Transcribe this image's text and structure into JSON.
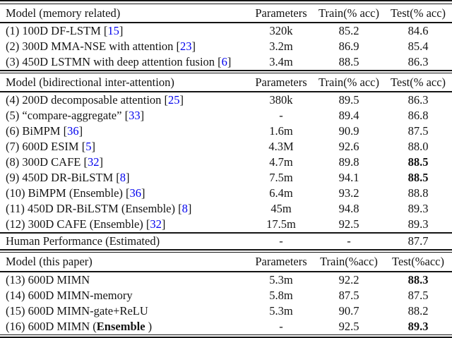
{
  "colors": {
    "background": "#FFFFFF",
    "text": "#141414",
    "rule": "#141414",
    "citation": "#0000EE"
  },
  "citation": {
    "open": " [",
    "close": "]"
  },
  "table": {
    "sections": [
      {
        "title": "Model (memory related)",
        "headers": {
          "parameters": "Parameters",
          "train": "Train(% acc)",
          "test": "Test(% acc)"
        },
        "rule_before": "double",
        "rows": [
          {
            "model_pre": "(1) 100D DF-LSTM",
            "model_bold": "",
            "model_post": "",
            "cite": "15",
            "params": "320k",
            "train": "85.2",
            "test": "84.6",
            "bold_test": false
          },
          {
            "model_pre": "(2) 300D MMA-NSE with attention",
            "model_bold": "",
            "model_post": "",
            "cite": "23",
            "params": "3.2m",
            "train": "86.9",
            "test": "85.4",
            "bold_test": false
          },
          {
            "model_pre": "(3) 450D LSTMN with deep attention fusion",
            "model_bold": "",
            "model_post": "",
            "cite": "6",
            "params": "3.4m",
            "train": "88.5",
            "test": "86.3",
            "bold_test": false
          }
        ]
      },
      {
        "title": "Model (bidirectional inter-attention)",
        "headers": {
          "parameters": "Parameters",
          "train": "Train(% acc)",
          "test": "Test(% acc)"
        },
        "rule_before": "double",
        "rows": [
          {
            "model_pre": "(4) 200D decomposable attention",
            "model_bold": "",
            "model_post": "",
            "cite": "25",
            "params": "380k",
            "train": "89.5",
            "test": "86.3",
            "bold_test": false
          },
          {
            "model_pre": "(5) “compare-aggregate”",
            "model_bold": "",
            "model_post": "",
            "cite": "33",
            "params": "-",
            "train": "89.4",
            "test": "86.8",
            "bold_test": false
          },
          {
            "model_pre": "(6) BiMPM",
            "model_bold": "",
            "model_post": "",
            "cite": "36",
            "params": "1.6m",
            "train": "90.9",
            "test": "87.5",
            "bold_test": false
          },
          {
            "model_pre": "(7) 600D ESIM",
            "model_bold": "",
            "model_post": "",
            "cite": "5",
            "params": "4.3M",
            "train": "92.6",
            "test": "88.0",
            "bold_test": false
          },
          {
            "model_pre": "(8) 300D CAFE",
            "model_bold": "",
            "model_post": "",
            "cite": "32",
            "params": "4.7m",
            "train": "89.8",
            "test": "88.5",
            "bold_test": true
          },
          {
            "model_pre": "(9) 450D DR-BiLSTM",
            "model_bold": "",
            "model_post": "",
            "cite": "8",
            "params": "7.5m",
            "train": "94.1",
            "test": "88.5",
            "bold_test": true
          },
          {
            "model_pre": "(10) BiMPM (Ensemble)",
            "model_bold": "",
            "model_post": "",
            "cite": "36",
            "params": "6.4m",
            "train": "93.2",
            "test": "88.8",
            "bold_test": false
          },
          {
            "model_pre": "(11) 450D DR-BiLSTM (Ensemble)",
            "model_bold": "",
            "model_post": "",
            "cite": "8",
            "params": "45m",
            "train": "94.8",
            "test": "89.3",
            "bold_test": false
          },
          {
            "model_pre": "(12) 300D CAFE (Ensemble)",
            "model_bold": "",
            "model_post": "",
            "cite": "32",
            "params": "17.5m",
            "train": "92.5",
            "test": "89.3",
            "bold_test": false
          }
        ]
      },
      {
        "title": null,
        "headers": null,
        "rule_before": "single",
        "rows": [
          {
            "model_pre": "Human Performance (Estimated)",
            "model_bold": "",
            "model_post": "",
            "cite": "",
            "params": "-",
            "train": "-",
            "test": "87.7",
            "bold_test": false,
            "human": true
          }
        ]
      },
      {
        "title": "Model (this paper)",
        "headers": {
          "parameters": "Parameters",
          "train": "Train(%acc)",
          "test": "Test(%acc)"
        },
        "rule_before": "double",
        "rows": [
          {
            "model_pre": "(13) 600D MIMN",
            "model_bold": "",
            "model_post": "",
            "cite": "",
            "params": "5.3m",
            "train": "92.2",
            "test": "88.3",
            "bold_test": true
          },
          {
            "model_pre": "(14) 600D MIMN-memory",
            "model_bold": "",
            "model_post": "",
            "cite": "",
            "params": "5.8m",
            "train": "87.5",
            "test": "87.5",
            "bold_test": false
          },
          {
            "model_pre": "(15) 600D MIMN-gate+ReLU",
            "model_bold": "",
            "model_post": "",
            "cite": "",
            "params": "5.3m",
            "train": "90.7",
            "test": "88.2",
            "bold_test": false
          },
          {
            "model_pre": "(16) 600D MIMN (",
            "model_bold": "Ensemble",
            "model_post": " )",
            "cite": "",
            "params": "-",
            "train": "92.5",
            "test": "89.3",
            "bold_test": true
          }
        ]
      }
    ],
    "bottom_rule": "double"
  }
}
